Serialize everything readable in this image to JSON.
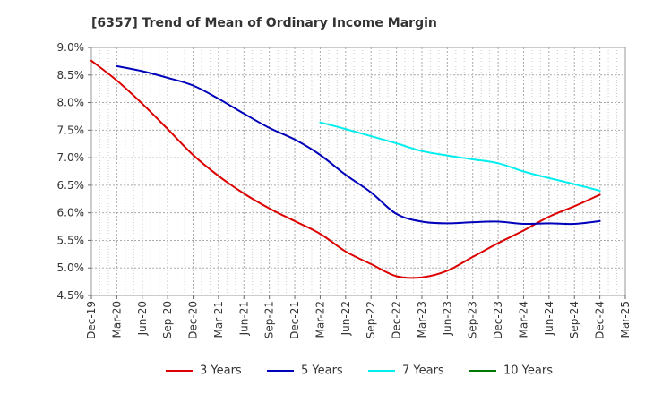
{
  "chart_data": {
    "type": "line",
    "title": "[6357]  Trend of Mean of Ordinary Income Margin",
    "xlabel": "",
    "ylabel": "",
    "x_ticks": [
      "Dec-19",
      "Mar-20",
      "Jun-20",
      "Sep-20",
      "Dec-20",
      "Mar-21",
      "Jun-21",
      "Sep-21",
      "Dec-21",
      "Mar-22",
      "Jun-22",
      "Sep-22",
      "Dec-22",
      "Mar-23",
      "Jun-23",
      "Sep-23",
      "Dec-23",
      "Mar-24",
      "Jun-24",
      "Sep-24",
      "Dec-24",
      "Mar-25"
    ],
    "y_ticks": [
      "4.5%",
      "5.0%",
      "5.5%",
      "6.0%",
      "6.5%",
      "7.0%",
      "7.5%",
      "8.0%",
      "8.5%",
      "9.0%"
    ],
    "ylim": [
      4.5,
      9.0
    ],
    "grid": true,
    "legend_position": "bottom",
    "series": [
      {
        "name": "3 Years",
        "color": "#dd0000",
        "x": [
          "Dec-19",
          "Mar-20",
          "Jun-20",
          "Sep-20",
          "Dec-20",
          "Mar-21",
          "Jun-21",
          "Sep-21",
          "Dec-21",
          "Mar-22",
          "Jun-22",
          "Sep-22",
          "Dec-22",
          "Mar-23",
          "Jun-23",
          "Sep-23",
          "Dec-23",
          "Mar-24",
          "Jun-24",
          "Sep-24",
          "Dec-24"
        ],
        "values": [
          8.76,
          8.4,
          7.98,
          7.52,
          7.05,
          6.67,
          6.35,
          6.08,
          5.85,
          5.62,
          5.3,
          5.07,
          4.85,
          4.83,
          4.95,
          5.2,
          5.45,
          5.68,
          5.93,
          6.12,
          6.33
        ]
      },
      {
        "name": "5 Years",
        "color": "#0000bb",
        "x": [
          "Mar-20",
          "Jun-20",
          "Sep-20",
          "Dec-20",
          "Mar-21",
          "Jun-21",
          "Sep-21",
          "Dec-21",
          "Mar-22",
          "Jun-22",
          "Sep-22",
          "Dec-22",
          "Mar-23",
          "Jun-23",
          "Sep-23",
          "Dec-23",
          "Mar-24",
          "Jun-24",
          "Sep-24",
          "Dec-24"
        ],
        "values": [
          8.66,
          8.57,
          8.45,
          8.31,
          8.07,
          7.8,
          7.54,
          7.33,
          7.05,
          6.69,
          6.37,
          5.98,
          5.84,
          5.81,
          5.83,
          5.84,
          5.8,
          5.81,
          5.8,
          5.85
        ]
      },
      {
        "name": "7 Years",
        "color": "#00eeee",
        "x": [
          "Mar-22",
          "Jun-22",
          "Sep-22",
          "Dec-22",
          "Mar-23",
          "Jun-23",
          "Sep-23",
          "Dec-23",
          "Mar-24",
          "Jun-24",
          "Sep-24",
          "Dec-24"
        ],
        "values": [
          7.64,
          7.52,
          7.39,
          7.26,
          7.12,
          7.04,
          6.97,
          6.9,
          6.75,
          6.63,
          6.52,
          6.4
        ]
      },
      {
        "name": "10 Years",
        "color": "#007700",
        "x": [],
        "values": []
      }
    ]
  }
}
